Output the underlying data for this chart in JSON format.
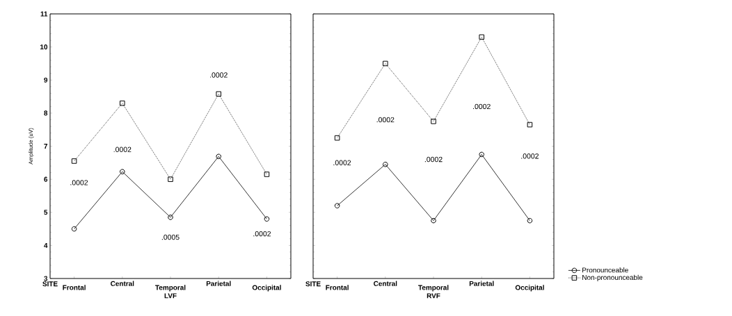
{
  "chart_data": [
    {
      "type": "line",
      "ylabel": "Amplitude (uV)",
      "xlabel": "LVF",
      "categories": [
        "Frontal",
        "Central",
        "Temporal",
        "Parietal",
        "Occipital"
      ],
      "ylim": [
        3,
        11
      ],
      "yticks": [
        3,
        4,
        5,
        6,
        7,
        8,
        9,
        10,
        11
      ],
      "legend": false,
      "grid": false,
      "series": [
        {
          "color": "#000000",
          "marker": "circle",
          "line_style": "solid",
          "values": [
            4.5,
            6.23,
            4.85,
            6.69,
            4.8
          ]
        },
        {
          "color": "#000000",
          "marker": "square",
          "line_style": "dotted",
          "values": [
            6.55,
            8.3,
            6.0,
            8.58,
            6.15
          ]
        }
      ],
      "annotations": [
        "SITE",
        ".0002",
        ".0002",
        ".0005",
        ".0002",
        ".0002"
      ]
    },
    {
      "type": "line",
      "xlabel": "RVF",
      "categories": [
        "Frontal",
        "Central",
        "Temporal",
        "Parietal",
        "Occipital"
      ],
      "ylim": [
        3,
        11
      ],
      "yticks": [
        3,
        4,
        5,
        6,
        7,
        8,
        9,
        10,
        11
      ],
      "tick_labels": "x",
      "legend": "bottom right",
      "grid": false,
      "series": [
        {
          "name": "Pronounceable",
          "color": "#000000",
          "marker": "circle",
          "line_style": "solid",
          "values": [
            5.2,
            6.45,
            4.75,
            6.75,
            4.75
          ]
        },
        {
          "name": "Non-pronounceable",
          "color": "#000000",
          "marker": "square",
          "line_style": "dotted",
          "values": [
            7.25,
            9.5,
            7.75,
            10.3,
            7.65
          ]
        }
      ],
      "annotations": [
        "SITE",
        ".0002",
        ".0002",
        ".0002",
        ".0002",
        ".0002"
      ]
    }
  ]
}
